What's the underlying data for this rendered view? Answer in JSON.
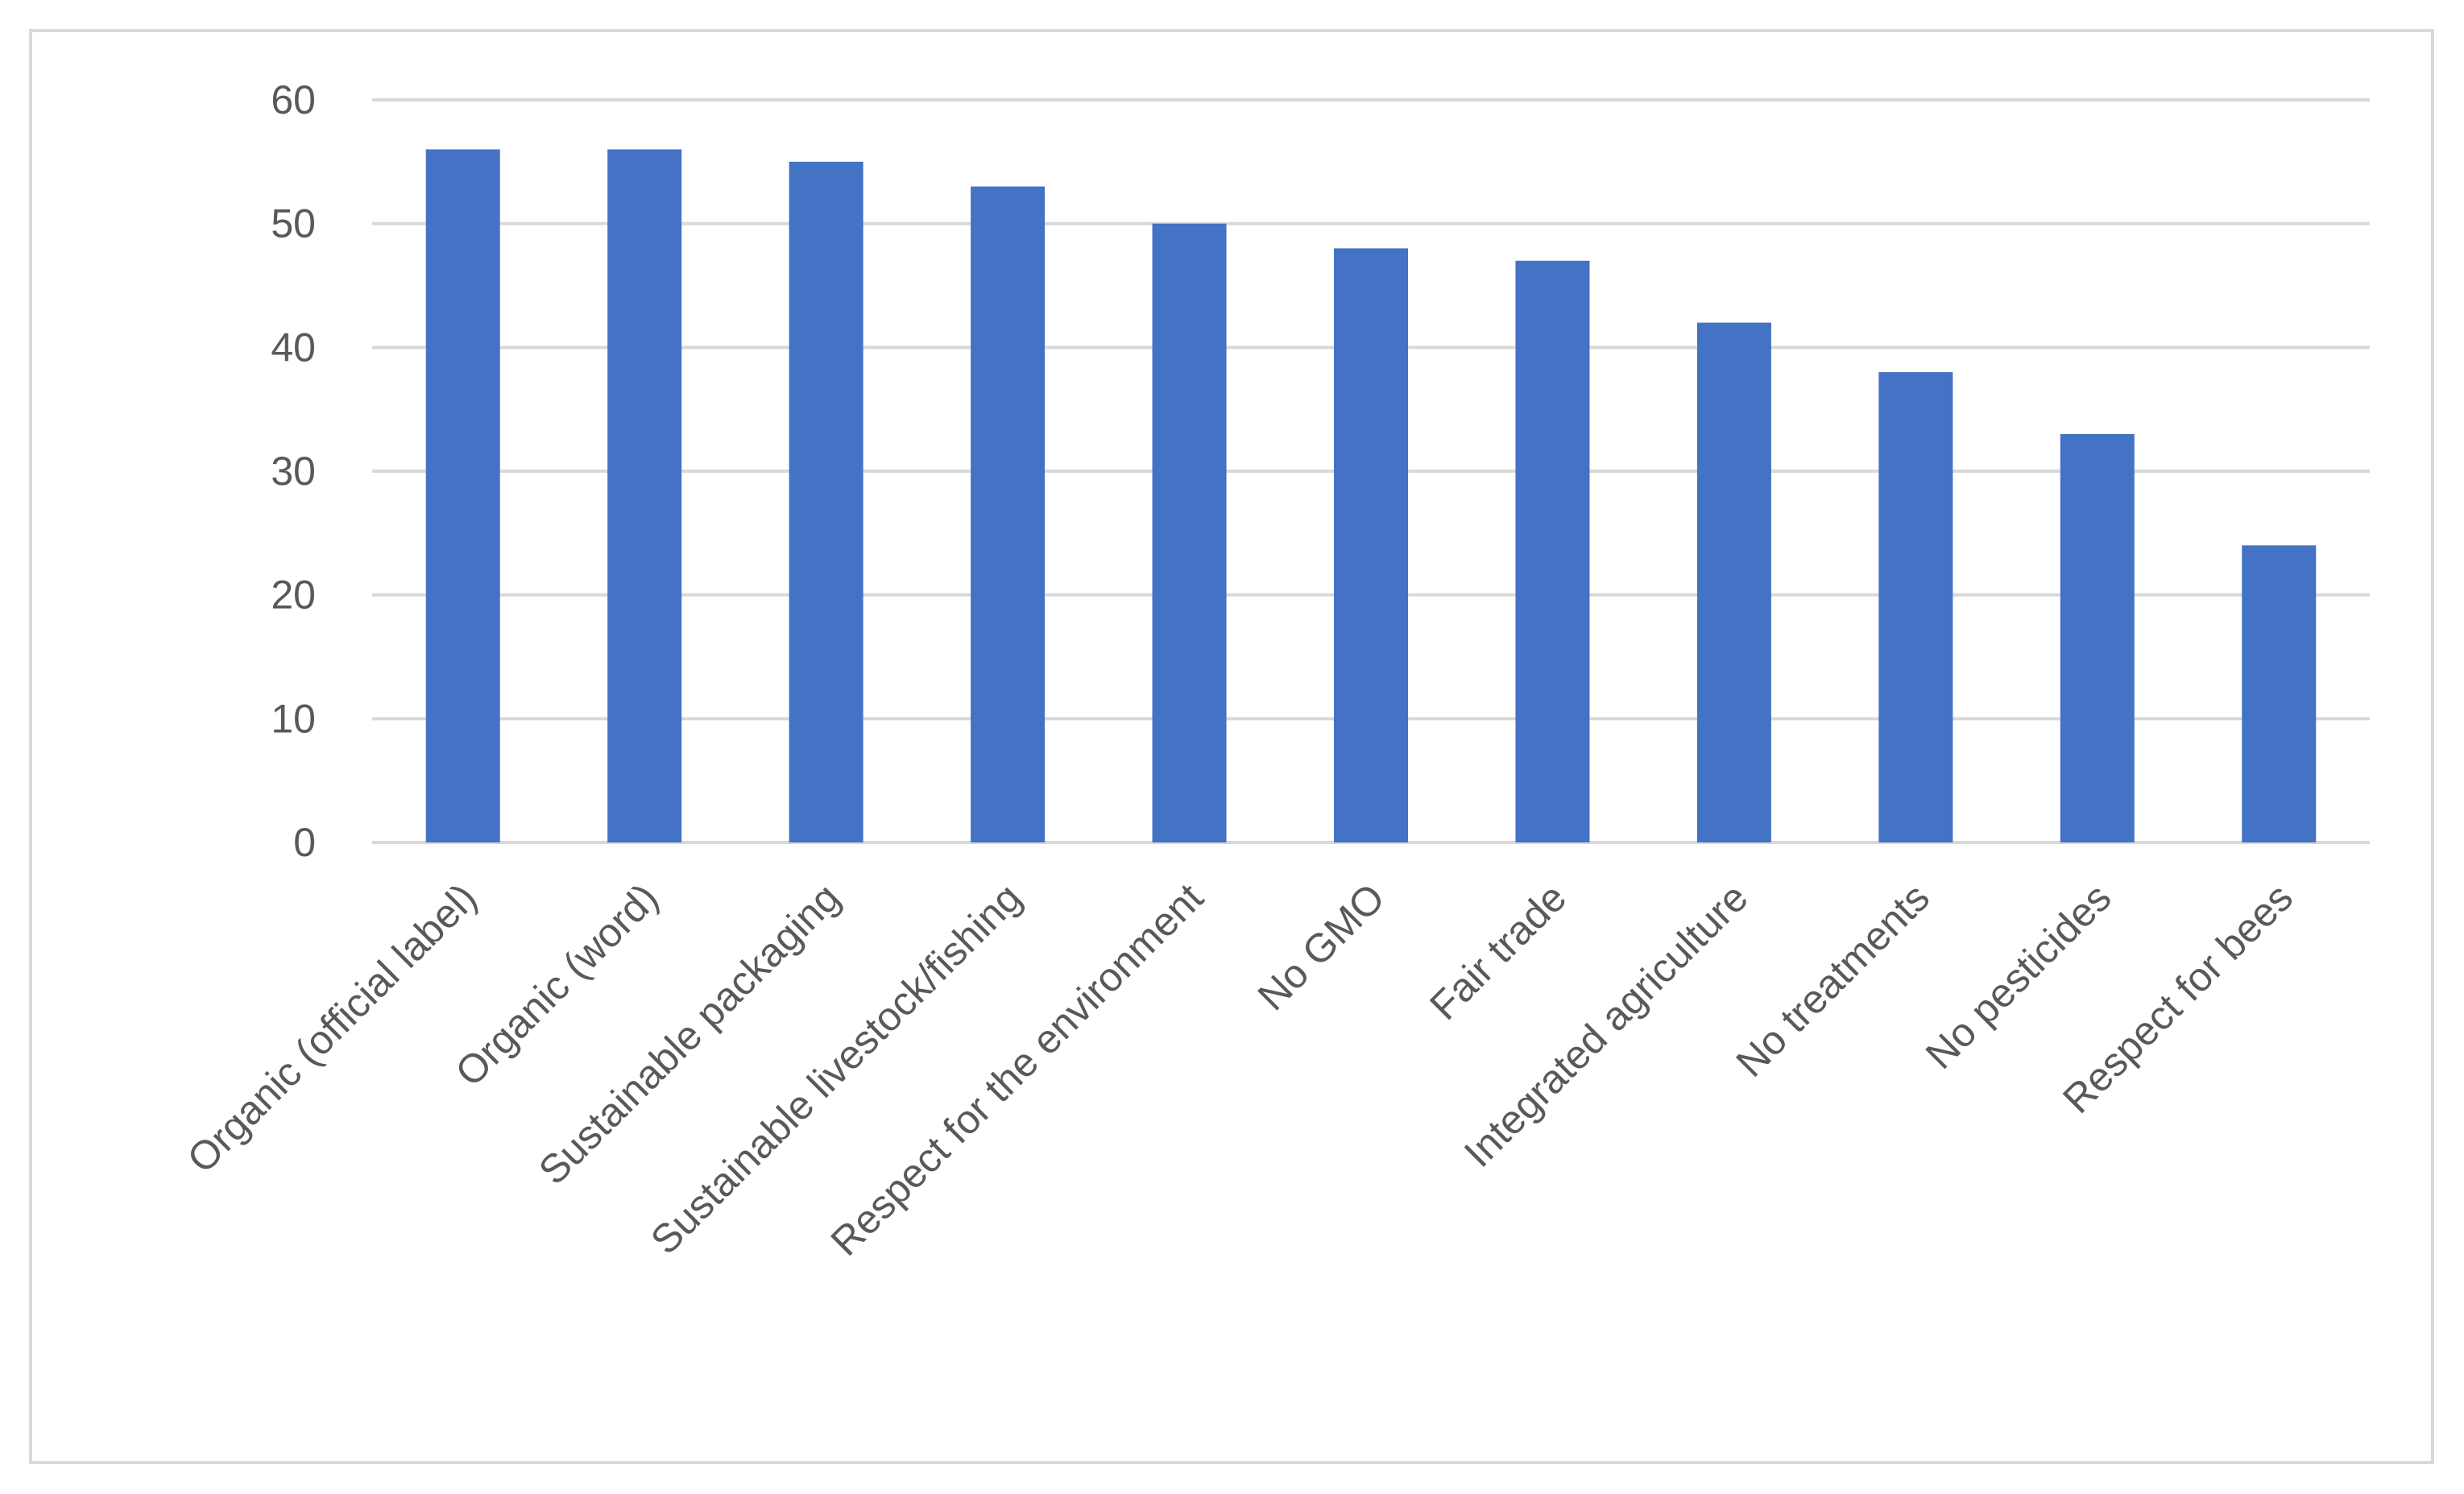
{
  "chart_data": {
    "type": "bar",
    "categories": [
      "Organic (official label)",
      "Organic (word)",
      "Sustainable packaging",
      "Sustainable livestock/fishing",
      "Respect for the environment",
      "No GMO",
      "Fair trade",
      "Integrated agriculture",
      "No treatments",
      "No pesticides",
      "Respect for bees"
    ],
    "values": [
      56,
      56,
      55,
      53,
      50,
      48,
      47,
      42,
      38,
      33,
      24
    ],
    "title": "",
    "xlabel": "",
    "ylabel": "",
    "ylim": [
      0,
      60
    ],
    "yticks": [
      0,
      10,
      20,
      30,
      40,
      50,
      60
    ],
    "grid": true,
    "legend": "none",
    "colors": {
      "bar": "#4472C4",
      "grid": "#d9d9d9",
      "text": "#595959",
      "border": "#d9d9d9"
    }
  }
}
